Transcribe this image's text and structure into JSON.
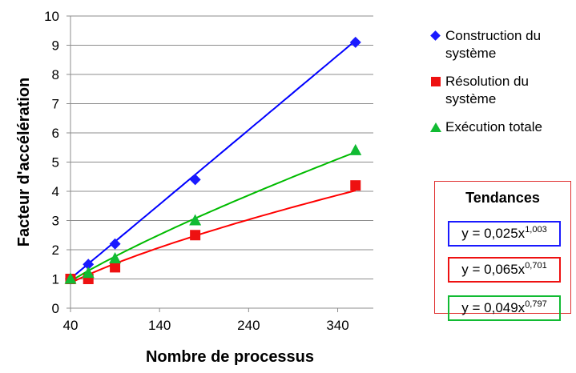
{
  "chart_data": {
    "type": "scatter",
    "xlabel": "Nombre de processus",
    "ylabel": "Facteur d'accélération",
    "xlim": [
      40,
      380
    ],
    "ylim": [
      0,
      10
    ],
    "x_ticks": [
      "40",
      "140",
      "240",
      "340"
    ],
    "y_ticks": [
      "0",
      "1",
      "2",
      "3",
      "4",
      "5",
      "6",
      "7",
      "8",
      "9",
      "10"
    ],
    "grid": "horizontal",
    "legend_position": "right",
    "series": [
      {
        "name": "Construction du\nsystème",
        "marker": "diamond",
        "color": "#1a1aff",
        "x": [
          40,
          60,
          90,
          180,
          360
        ],
        "y": [
          1.0,
          1.5,
          2.2,
          4.4,
          9.1
        ],
        "trend": {
          "a": 0.025,
          "b": 1.003,
          "label_prefix": "y = 0,025x",
          "label_exp": "1,003"
        }
      },
      {
        "name": "Résolution du\nsystème",
        "marker": "square",
        "color": "#ee1111",
        "x": [
          40,
          60,
          90,
          180,
          360
        ],
        "y": [
          1.0,
          1.0,
          1.4,
          2.5,
          4.2
        ],
        "trend": {
          "a": 0.065,
          "b": 0.701,
          "label_prefix": "y = 0,065x",
          "label_exp": "0,701"
        }
      },
      {
        "name": "Exécution totale",
        "marker": "triangle",
        "color": "#11bb33",
        "x": [
          40,
          60,
          90,
          180,
          360
        ],
        "y": [
          1.0,
          1.2,
          1.7,
          3.0,
          5.4
        ],
        "trend": {
          "a": 0.049,
          "b": 0.797,
          "label_prefix": "y = 0,049x",
          "label_exp": "0,797"
        }
      }
    ],
    "trendline_color_ci": "#0000ff",
    "trendline_color_cr": "#ff0000",
    "trendline_color_et": "#00bb00"
  },
  "trends_panel": {
    "title": "Tendances",
    "border_color": "#e03030"
  }
}
